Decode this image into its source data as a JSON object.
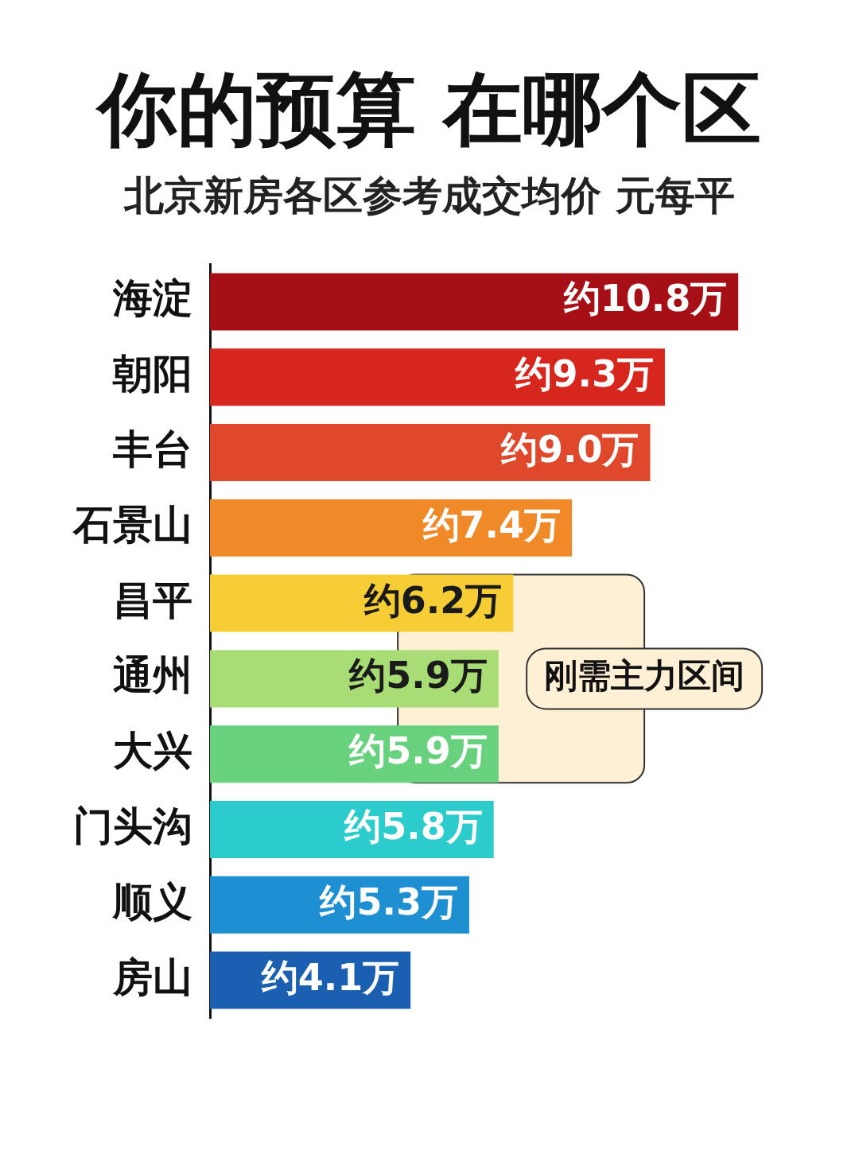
{
  "chart_data": {
    "type": "bar",
    "orientation": "horizontal",
    "title": "你的预算 在哪个区",
    "subtitle": "北京新房各区参考成交均价 元每平",
    "categories": [
      "海淀",
      "朝阳",
      "丰台",
      "石景山",
      "昌平",
      "通州",
      "大兴",
      "门头沟",
      "顺义",
      "房山"
    ],
    "values": [
      10.8,
      9.3,
      9.0,
      7.4,
      6.2,
      5.9,
      5.9,
      5.8,
      5.3,
      4.1
    ],
    "value_labels": [
      "约10.8万",
      "约9.3万",
      "约9.0万",
      "约7.4万",
      "约6.2万",
      "约5.9万",
      "约5.9万",
      "约5.8万",
      "约5.3万",
      "约4.1万"
    ],
    "colors": [
      "#a50f15",
      "#d7261e",
      "#e0482b",
      "#f08a28",
      "#f7cd35",
      "#a8dc74",
      "#68d17e",
      "#2ccccc",
      "#1e8fd0",
      "#1a5fb0"
    ],
    "bands": [
      {
        "axis": "y",
        "from": "昌平",
        "to": "大兴",
        "label": "刚需主力区间",
        "color": "#fdf0d5"
      }
    ],
    "grid": false,
    "legend": false,
    "tick_labels": "y"
  }
}
